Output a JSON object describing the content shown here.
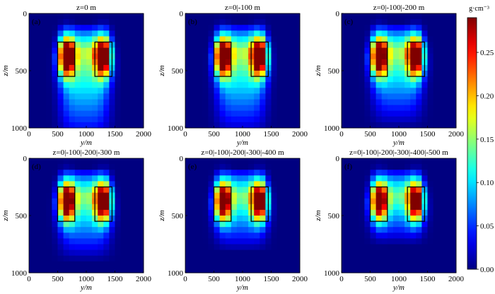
{
  "chart_data": {
    "type": "heatmap",
    "panels": [
      {
        "label": "(a)",
        "title": "z=0 m",
        "model": "a"
      },
      {
        "label": "(b)",
        "title": "z=0|-100 m",
        "model": "b"
      },
      {
        "label": "(c)",
        "title": "z=0|-100|-200 m",
        "model": "c"
      },
      {
        "label": "(d)",
        "title": "z=0|-100|-200|-300 m",
        "model": "d"
      },
      {
        "label": "(e)",
        "title": "z=0|-100|-200|-300|-400 m",
        "model": "e"
      },
      {
        "label": "(f)",
        "title": "z=0|-100|-200|-300|-400|-500 m",
        "model": "f"
      }
    ],
    "xlabel": "y/m",
    "ylabel": "z/m",
    "xlim": [
      0,
      2000
    ],
    "ylim": [
      0,
      1000
    ],
    "xticks": [
      "0",
      "500",
      "1000",
      "1500",
      "2000"
    ],
    "yticks": [
      "0",
      "500",
      "1000"
    ],
    "grid_cells": {
      "nx": 20,
      "nz": 20,
      "cell_size_m": 50
    },
    "true_bodies": [
      {
        "y_range": [
          500,
          800
        ],
        "z_range": [
          250,
          550
        ]
      },
      {
        "y_range": [
          1150,
          1450
        ],
        "z_range": [
          250,
          550
        ]
      }
    ],
    "colorbar": {
      "label": "g·cm⁻³",
      "min": 0.0,
      "max": 0.29,
      "ticks": [
        "0.00",
        "0.05",
        "0.10",
        "0.15",
        "0.20",
        "0.25"
      ],
      "colormap": "jet"
    }
  }
}
